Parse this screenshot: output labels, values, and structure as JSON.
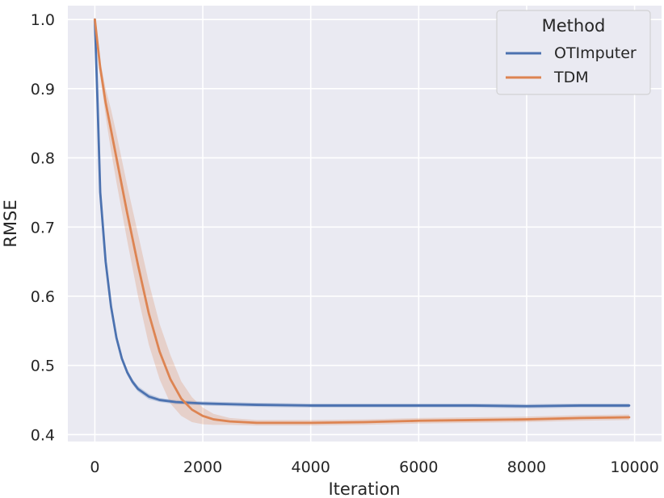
{
  "chart_data": {
    "type": "line",
    "xlabel": "Iteration",
    "ylabel": "RMSE",
    "xlim": [
      -500,
      10500
    ],
    "ylim": [
      0.39,
      1.02
    ],
    "xticks": [
      0,
      2000,
      4000,
      6000,
      8000,
      10000
    ],
    "yticks": [
      0.4,
      0.5,
      0.6,
      0.7,
      0.8,
      0.9,
      1.0
    ],
    "xtick_labels": [
      "0",
      "2000",
      "4000",
      "6000",
      "8000",
      "10000"
    ],
    "ytick_labels": [
      "0.4",
      "0.5",
      "0.6",
      "0.7",
      "0.8",
      "0.9",
      "1.0"
    ],
    "grid": true,
    "legend": {
      "title": "Method",
      "placement": "top-right"
    },
    "series": [
      {
        "name": "OTImputer",
        "color": "#4c72b0",
        "x": [
          0,
          50,
          100,
          200,
          300,
          400,
          500,
          600,
          700,
          800,
          1000,
          1200,
          1500,
          2000,
          2500,
          3000,
          4000,
          5000,
          6000,
          7000,
          8000,
          9000,
          9900
        ],
        "y": [
          1.0,
          0.88,
          0.75,
          0.65,
          0.585,
          0.54,
          0.51,
          0.49,
          0.476,
          0.466,
          0.455,
          0.45,
          0.447,
          0.445,
          0.444,
          0.443,
          0.442,
          0.442,
          0.442,
          0.442,
          0.441,
          0.442,
          0.442
        ],
        "band_width": [
          0,
          0.004,
          0.004,
          0.004,
          0.004,
          0.004,
          0.004,
          0.004,
          0.004,
          0.004,
          0.004,
          0.003,
          0.003,
          0.003,
          0.003,
          0.003,
          0.003,
          0.003,
          0.003,
          0.003,
          0.003,
          0.003,
          0.003
        ]
      },
      {
        "name": "TDM",
        "color": "#dd8452",
        "x": [
          0,
          100,
          200,
          300,
          400,
          600,
          800,
          1000,
          1200,
          1400,
          1600,
          1800,
          2000,
          2200,
          2500,
          3000,
          3500,
          4000,
          5000,
          6000,
          7000,
          8000,
          9000,
          9900
        ],
        "y": [
          1.0,
          0.93,
          0.88,
          0.84,
          0.8,
          0.72,
          0.645,
          0.575,
          0.52,
          0.48,
          0.452,
          0.436,
          0.427,
          0.422,
          0.419,
          0.417,
          0.417,
          0.417,
          0.418,
          0.42,
          0.421,
          0.422,
          0.424,
          0.425
        ],
        "band_width": [
          0,
          0.01,
          0.02,
          0.03,
          0.035,
          0.04,
          0.045,
          0.045,
          0.04,
          0.035,
          0.025,
          0.018,
          0.012,
          0.008,
          0.005,
          0.004,
          0.004,
          0.004,
          0.004,
          0.004,
          0.004,
          0.004,
          0.004,
          0.004
        ]
      }
    ]
  }
}
